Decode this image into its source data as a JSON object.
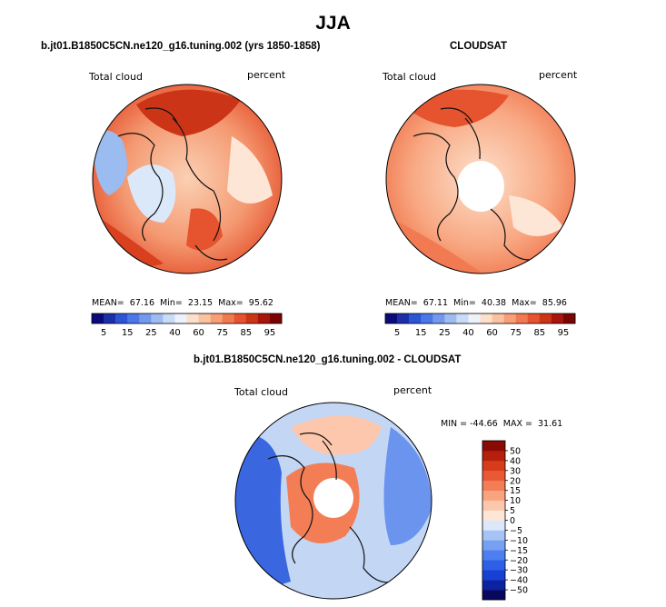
{
  "figure": {
    "title": "JJA"
  },
  "panels": {
    "model": {
      "subtitle": "b.jt01.B1850C5CN.ne120_g16.tuning.002 (yrs 1850-1858)",
      "left_label": "Total cloud",
      "right_label": "percent",
      "stats": "MEAN=  67.16  Min=  23.15  Max=  95.62"
    },
    "obs": {
      "subtitle": "CLOUDSAT",
      "left_label": "Total cloud",
      "right_label": "percent",
      "stats": "MEAN=  67.11  Min=  40.38  Max=  85.96"
    },
    "diff": {
      "subtitle": "b.jt01.B1850C5CN.ne120_g16.tuning.002 - CLOUDSAT",
      "left_label": "Total cloud",
      "right_label": "percent",
      "stats": "MIN = -44.66  MAX =  31.61"
    }
  },
  "chart_data": [
    {
      "type": "heatmap",
      "title": "b.jt01.B1850C5CN.ne120_g16.tuning.002 (yrs 1850-1858)",
      "variable": "Total cloud",
      "units": "percent",
      "projection": "north polar stereographic",
      "season": "JJA",
      "mean": 67.16,
      "min": 23.15,
      "max": 95.62,
      "colorbar": {
        "orientation": "horizontal",
        "levels": [
          5,
          10,
          15,
          20,
          25,
          30,
          40,
          50,
          60,
          70,
          75,
          80,
          85,
          90,
          95
        ],
        "tick_labels": [
          "5",
          "15",
          "25",
          "40",
          "60",
          "75",
          "85",
          "95"
        ],
        "colors": [
          "#0a0a7a",
          "#1a2fa8",
          "#2c55d6",
          "#4a78e8",
          "#7399ee",
          "#9fbcf2",
          "#c9dbf6",
          "#eef2fb",
          "#fde0cc",
          "#fbc2a2",
          "#f89f78",
          "#f27a52",
          "#e5532f",
          "#cc3418",
          "#a8150c",
          "#7a0404"
        ]
      }
    },
    {
      "type": "heatmap",
      "title": "CLOUDSAT",
      "variable": "Total cloud",
      "units": "percent",
      "projection": "north polar stereographic",
      "season": "JJA",
      "mean": 67.11,
      "min": 40.38,
      "max": 85.96,
      "colorbar": {
        "orientation": "horizontal",
        "levels": [
          5,
          10,
          15,
          20,
          25,
          30,
          40,
          50,
          60,
          70,
          75,
          80,
          85,
          90,
          95
        ],
        "tick_labels": [
          "5",
          "15",
          "25",
          "40",
          "60",
          "75",
          "85",
          "95"
        ],
        "colors": [
          "#0a0a7a",
          "#1a2fa8",
          "#2c55d6",
          "#4a78e8",
          "#7399ee",
          "#9fbcf2",
          "#c9dbf6",
          "#eef2fb",
          "#fde0cc",
          "#fbc2a2",
          "#f89f78",
          "#f27a52",
          "#e5532f",
          "#cc3418",
          "#a8150c",
          "#7a0404"
        ]
      }
    },
    {
      "type": "heatmap",
      "title": "b.jt01.B1850C5CN.ne120_g16.tuning.002 - CLOUDSAT",
      "variable": "Total cloud",
      "units": "percent",
      "projection": "north polar stereographic",
      "season": "JJA",
      "min": -44.66,
      "max": 31.61,
      "colorbar": {
        "orientation": "vertical",
        "levels": [
          -50,
          -40,
          -30,
          -20,
          -15,
          -10,
          -5,
          0,
          5,
          10,
          15,
          20,
          30,
          40,
          50
        ],
        "tick_labels": [
          "-50",
          "-40",
          "-30",
          "-20",
          "-15",
          "-10",
          "-5",
          "0",
          "5",
          "10",
          "15",
          "20",
          "30",
          "40",
          "50"
        ],
        "colors": [
          "#08085e",
          "#0d22a0",
          "#1840d2",
          "#2f5fe6",
          "#4e7ff0",
          "#78a0f2",
          "#a6c3f5",
          "#dbe8fa",
          "#fde6d6",
          "#fcc7ac",
          "#f9a47f",
          "#f37e56",
          "#e95a34",
          "#d63c1b",
          "#b51f0c",
          "#8a0a04"
        ]
      }
    }
  ]
}
